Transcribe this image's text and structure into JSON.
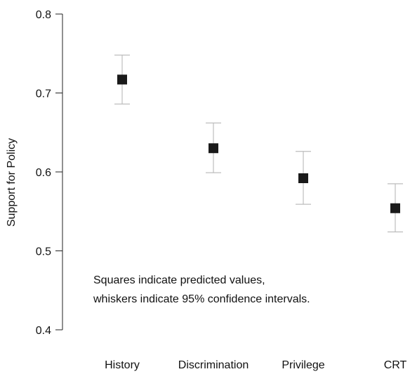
{
  "chart_data": {
    "type": "scatter",
    "categories": [
      "History",
      "Discrimination",
      "Privilege",
      "CRT"
    ],
    "values": [
      0.717,
      0.63,
      0.592,
      0.554
    ],
    "ci_lower": [
      0.686,
      0.599,
      0.559,
      0.524
    ],
    "ci_upper": [
      0.748,
      0.662,
      0.626,
      0.585
    ],
    "xlabel": "",
    "ylabel": "Support for Policy",
    "ylim": [
      0.4,
      0.8
    ],
    "yticks": [
      0.4,
      0.5,
      0.6,
      0.7,
      0.8
    ],
    "ytick_labels": [
      "0.4",
      "0.5",
      "0.6",
      "0.7",
      "0.8"
    ],
    "annotation": {
      "line1": "Squares indicate predicted values,",
      "line2": "whiskers indicate 95% confidence intervals."
    },
    "grid": false,
    "marker": "square",
    "colors": {
      "marker": "#1a1a1a",
      "whisker": "#bdbdbd",
      "axis": "#222222"
    }
  }
}
